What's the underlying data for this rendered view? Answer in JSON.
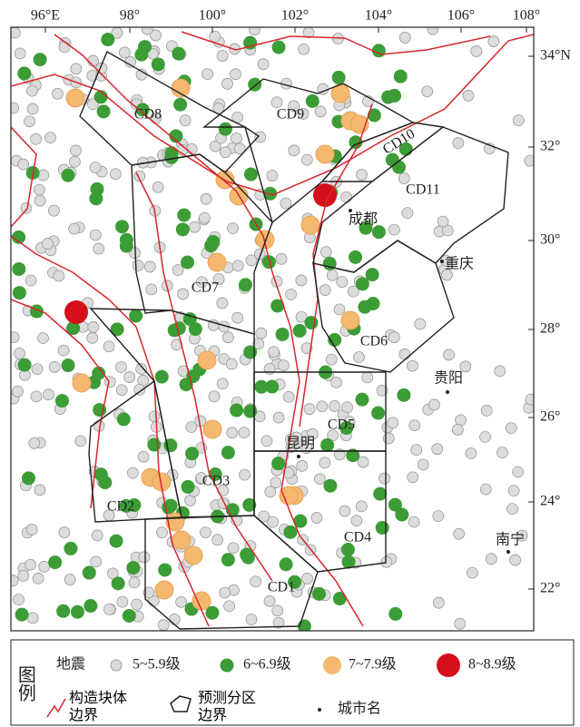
{
  "map": {
    "lon_labels": [
      "96°E",
      "98°",
      "100°",
      "102°",
      "104°",
      "106°",
      "108°"
    ],
    "lat_labels": [
      "34°N",
      "32°",
      "30°",
      "28°",
      "26°",
      "24°",
      "22°"
    ],
    "zones": [
      "CD1",
      "CD2",
      "CD3",
      "CD4",
      "CD5",
      "CD6",
      "CD7",
      "CD8",
      "CD9",
      "CD10",
      "CD11"
    ],
    "cities": [
      "成都",
      "重庆",
      "贵阳",
      "昆明",
      "南宁"
    ]
  },
  "legend": {
    "title": "图例",
    "earthquake": "地震",
    "magnitudes": [
      "5~5.9级",
      "6~6.9级",
      "7~7.9级",
      "8~8.9级"
    ],
    "fault": "构造块体边界",
    "zone_boundary": "预测分区边界",
    "city": "城市名"
  }
}
